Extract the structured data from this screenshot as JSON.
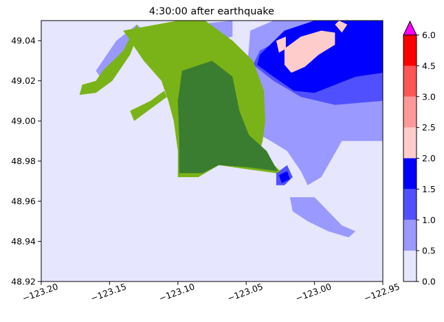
{
  "chart_data": {
    "type": "heatmap",
    "title": "4:30:00 after earthquake",
    "xlabel": "",
    "ylabel": "",
    "xlim": [
      -123.2,
      -122.95
    ],
    "ylim": [
      48.92,
      49.05
    ],
    "x_ticks": [
      -123.2,
      -123.15,
      -123.1,
      -123.05,
      -123.0,
      -122.95
    ],
    "x_tick_labels": [
      "−123.20",
      "−123.15",
      "−123.10",
      "−123.05",
      "−123.00",
      "−122.95"
    ],
    "y_ticks": [
      48.92,
      48.94,
      48.96,
      48.98,
      49.0,
      49.02,
      49.04
    ],
    "y_tick_labels": [
      "48.92",
      "48.94",
      "48.96",
      "48.98",
      "49.00",
      "49.02",
      "49.04"
    ],
    "grid": false,
    "colorbar": {
      "levels": [
        0.0,
        0.5,
        1.0,
        1.5,
        2.0,
        2.5,
        3.0,
        4.5,
        6.0
      ],
      "tick_labels": [
        "0.0",
        "0.5",
        "1.0",
        "1.5",
        "2.0",
        "2.5",
        "3.0",
        "4.5",
        "6.0"
      ],
      "colors": [
        "#e6e6ff",
        "#9999ff",
        "#5050ff",
        "#0000ff",
        "#ffcccc",
        "#ff9999",
        "#ff5555",
        "#ff0000"
      ],
      "over_color": "#ff00ff",
      "extend": "max"
    },
    "land_colors": [
      "#7ab317",
      "#3a7d30"
    ],
    "regions": [
      {
        "level": "0.5-1.0",
        "color": "#9999ff",
        "polygon": [
          [
            -123.047,
            49.045
          ],
          [
            -123.03,
            49.05
          ],
          [
            -122.95,
            49.05
          ],
          [
            -122.95,
            48.99
          ],
          [
            -122.98,
            48.99
          ],
          [
            -122.995,
            48.972
          ],
          [
            -123.005,
            48.968
          ],
          [
            -123.01,
            48.975
          ],
          [
            -123.02,
            48.985
          ],
          [
            -123.032,
            48.99
          ],
          [
            -123.045,
            48.995
          ],
          [
            -123.052,
            49.005
          ]
        ]
      },
      {
        "level": "0.5-1.0",
        "color": "#9999ff",
        "polygon": [
          [
            -123.018,
            48.962
          ],
          [
            -123.0,
            48.962
          ],
          [
            -122.99,
            48.955
          ],
          [
            -122.98,
            48.948
          ],
          [
            -122.97,
            48.945
          ],
          [
            -122.975,
            48.942
          ],
          [
            -122.99,
            48.945
          ],
          [
            -123.005,
            48.95
          ],
          [
            -123.016,
            48.955
          ]
        ]
      },
      {
        "level": "0.5-1.0",
        "color": "#9999ff",
        "polygon": [
          [
            -123.16,
            49.025
          ],
          [
            -123.145,
            49.04
          ],
          [
            -123.13,
            49.048
          ],
          [
            -123.125,
            49.045
          ],
          [
            -123.14,
            49.032
          ],
          [
            -123.155,
            49.02
          ]
        ]
      },
      {
        "level": "0.5-1.0",
        "color": "#9999ff",
        "polygon": [
          [
            -123.088,
            49.048
          ],
          [
            -123.06,
            49.05
          ],
          [
            -123.06,
            49.042
          ],
          [
            -123.075,
            49.04
          ],
          [
            -123.09,
            49.042
          ]
        ]
      },
      {
        "level": "0.5-1.0",
        "color": "#9999ff",
        "polygon": [
          [
            -123.095,
            49.003
          ],
          [
            -123.08,
            49.006
          ],
          [
            -123.065,
            49.003
          ],
          [
            -123.07,
            48.998
          ],
          [
            -123.085,
            48.998
          ]
        ]
      },
      {
        "level": "1.0-1.5",
        "color": "#5050ff",
        "polygon": [
          [
            -123.04,
            49.035
          ],
          [
            -123.0,
            49.05
          ],
          [
            -122.95,
            49.05
          ],
          [
            -122.95,
            49.01
          ],
          [
            -122.985,
            49.008
          ],
          [
            -123.01,
            49.012
          ],
          [
            -123.03,
            49.02
          ],
          [
            -123.045,
            49.028
          ]
        ]
      },
      {
        "level": "1.0-1.5",
        "color": "#5050ff",
        "polygon": [
          [
            -123.028,
            48.974
          ],
          [
            -123.02,
            48.978
          ],
          [
            -123.016,
            48.972
          ],
          [
            -123.022,
            48.968
          ],
          [
            -123.028,
            48.968
          ]
        ]
      },
      {
        "level": "1.5-2.0",
        "color": "#0000ff",
        "polygon": [
          [
            -123.04,
            49.033
          ],
          [
            -123.022,
            49.045
          ],
          [
            -123.0,
            49.05
          ],
          [
            -122.95,
            49.05
          ],
          [
            -122.95,
            49.024
          ],
          [
            -122.97,
            49.022
          ],
          [
            -122.985,
            49.018
          ],
          [
            -123.0,
            49.014
          ],
          [
            -123.015,
            49.015
          ],
          [
            -123.03,
            49.022
          ],
          [
            -123.042,
            49.028
          ]
        ]
      },
      {
        "level": "1.5-2.0",
        "color": "#0000ff",
        "polygon": [
          [
            -123.026,
            48.973
          ],
          [
            -123.02,
            48.975
          ],
          [
            -123.018,
            48.971
          ],
          [
            -123.024,
            48.969
          ]
        ]
      },
      {
        "level": "2.0-2.5",
        "color": "#ffcccc",
        "polygon": [
          [
            -123.022,
            49.036
          ],
          [
            -123.01,
            49.042
          ],
          [
            -122.995,
            49.045
          ],
          [
            -122.985,
            49.044
          ],
          [
            -122.985,
            49.038
          ],
          [
            -122.997,
            49.033
          ],
          [
            -123.007,
            49.027
          ],
          [
            -123.017,
            49.024
          ],
          [
            -123.022,
            49.028
          ]
        ]
      },
      {
        "level": "2.0-2.5",
        "color": "#ffcccc",
        "polygon": [
          [
            -123.028,
            49.04
          ],
          [
            -123.021,
            49.042
          ],
          [
            -123.021,
            49.036
          ],
          [
            -123.026,
            49.034
          ]
        ]
      },
      {
        "level": "2.0-2.5",
        "color": "#ffcccc",
        "polygon": [
          [
            -122.985,
            49.048
          ],
          [
            -122.982,
            49.05
          ],
          [
            -122.976,
            49.048
          ],
          [
            -122.98,
            49.044
          ]
        ]
      }
    ],
    "land": [
      {
        "color": "#7ab317",
        "polygon": [
          [
            -123.1,
            49.05
          ],
          [
            -123.08,
            49.05
          ],
          [
            -123.07,
            49.045
          ],
          [
            -123.06,
            49.04
          ],
          [
            -123.045,
            49.03
          ],
          [
            -123.037,
            49.015
          ],
          [
            -123.036,
            49.0
          ],
          [
            -123.038,
            48.99
          ],
          [
            -123.04,
            48.985
          ],
          [
            -123.025,
            48.975
          ],
          [
            -123.028,
            48.974
          ],
          [
            -123.05,
            48.976
          ],
          [
            -123.07,
            48.978
          ],
          [
            -123.085,
            48.972
          ],
          [
            -123.1,
            48.972
          ],
          [
            -123.1,
            48.985
          ],
          [
            -123.103,
            49.0
          ],
          [
            -123.107,
            49.01
          ],
          [
            -123.112,
            49.02
          ],
          [
            -123.125,
            49.03
          ],
          [
            -123.14,
            49.045
          ]
        ]
      },
      {
        "color": "#7ab317",
        "polygon": [
          [
            -123.17,
            49.018
          ],
          [
            -123.16,
            49.02
          ],
          [
            -123.155,
            49.025
          ],
          [
            -123.14,
            49.035
          ],
          [
            -123.13,
            49.048
          ],
          [
            -123.128,
            49.045
          ],
          [
            -123.135,
            49.033
          ],
          [
            -123.148,
            49.02
          ],
          [
            -123.16,
            49.014
          ],
          [
            -123.172,
            49.013
          ]
        ]
      },
      {
        "color": "#7ab317",
        "polygon": [
          [
            -123.135,
            49.005
          ],
          [
            -123.12,
            49.01
          ],
          [
            -123.11,
            49.015
          ],
          [
            -123.108,
            49.012
          ],
          [
            -123.12,
            49.006
          ],
          [
            -123.132,
            49.0
          ]
        ]
      },
      {
        "color": "#3a7d30",
        "polygon": [
          [
            -123.097,
            49.025
          ],
          [
            -123.075,
            49.03
          ],
          [
            -123.06,
            49.022
          ],
          [
            -123.055,
            49.005
          ],
          [
            -123.048,
            48.993
          ],
          [
            -123.035,
            48.985
          ],
          [
            -123.027,
            48.975
          ],
          [
            -123.05,
            48.977
          ],
          [
            -123.07,
            48.978
          ],
          [
            -123.082,
            48.974
          ],
          [
            -123.099,
            48.974
          ],
          [
            -123.099,
            48.99
          ],
          [
            -123.1,
            49.01
          ]
        ]
      }
    ]
  }
}
